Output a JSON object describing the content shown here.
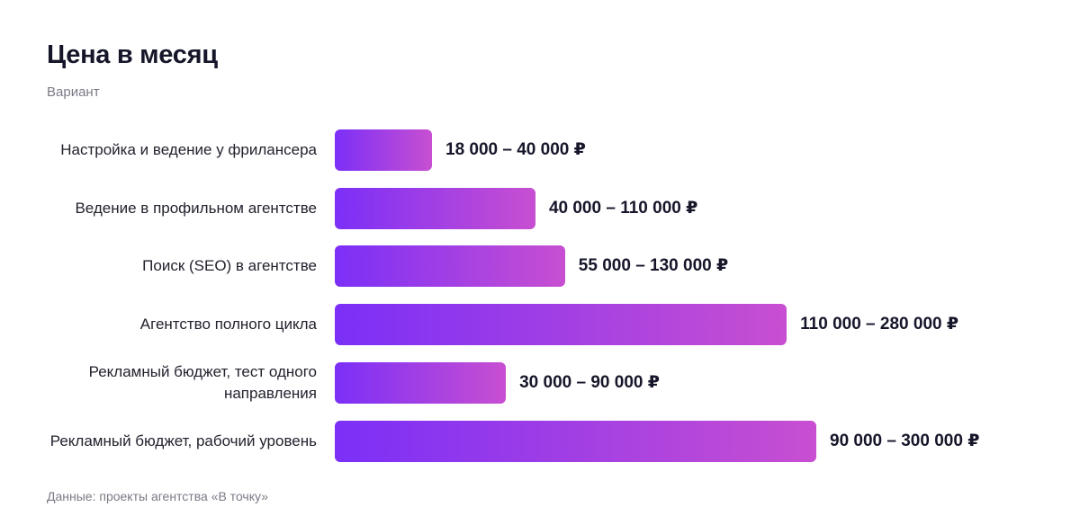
{
  "chart_data": {
    "type": "bar",
    "orientation": "horizontal",
    "title": "Цена в месяц",
    "subtitle": "Вариант",
    "source": "Данные: проекты агентства «В точку»",
    "unit": "₽",
    "categories": [
      "Настройка и ведение у фрилансера",
      "Ведение в профильном агентстве",
      "Поиск (SEO) в агентстве",
      "Агентство полного цикла",
      "Рекламный бюджет, тест одного направления",
      "Рекламный бюджет, рабочий уровень"
    ],
    "ranges": [
      {
        "min": 18000,
        "max": 40000
      },
      {
        "min": 40000,
        "max": 110000
      },
      {
        "min": 55000,
        "max": 130000
      },
      {
        "min": 110000,
        "max": 280000
      },
      {
        "min": 30000,
        "max": 90000
      },
      {
        "min": 90000,
        "max": 300000
      }
    ],
    "values": [
      40000,
      110000,
      130000,
      280000,
      90000,
      300000
    ],
    "value_labels": [
      "18 000 – 40 000 ₽",
      "40 000 – 110 000 ₽",
      "55 000 – 130 000 ₽",
      "110 000 – 280 000 ₽",
      "30 000 – 90 000 ₽",
      "90 000 – 300 000 ₽"
    ],
    "colors": {
      "bar_start": "#7b2ff7",
      "bar_end": "#c84fd1"
    },
    "grid": false,
    "legend": "none"
  }
}
